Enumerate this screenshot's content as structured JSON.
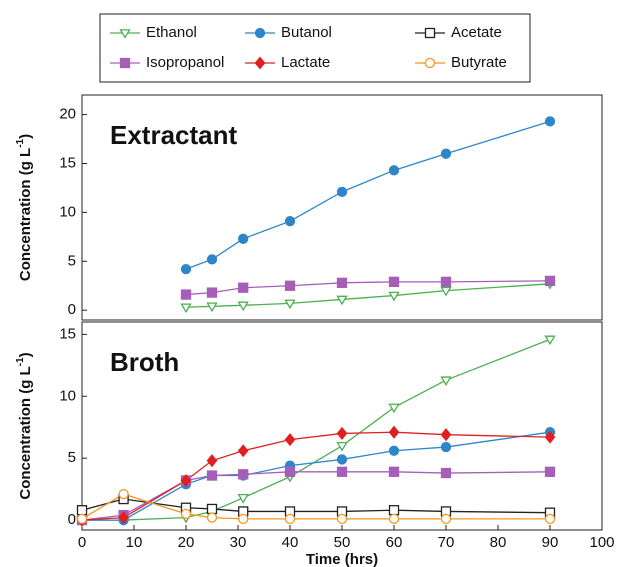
{
  "chart_data": [
    {
      "type": "line",
      "annotation": "Extractant",
      "ylabel": "Concentration (g L",
      "ylabel_sup": "-1",
      "ylabel_end": ")",
      "x": [
        20,
        25,
        31,
        40,
        50,
        60,
        70,
        90
      ],
      "xlim": [
        0,
        100
      ],
      "ylim": [
        -1,
        22
      ],
      "yticks": [
        0,
        5,
        10,
        15,
        20
      ],
      "series": [
        {
          "color": "#4caf50",
          "marker": "triangle-down",
          "filled": false,
          "values": [
            0.3,
            0.4,
            0.5,
            0.7,
            1.1,
            1.5,
            2.0,
            2.7
          ]
        },
        {
          "color": "#2e86c8",
          "marker": "circle",
          "filled": true,
          "values": [
            4.2,
            5.2,
            7.3,
            9.1,
            12.1,
            14.3,
            16.0,
            19.3
          ]
        },
        {
          "color": "#a65fb8",
          "marker": "square",
          "filled": true,
          "values": [
            1.6,
            1.8,
            2.3,
            2.5,
            2.8,
            2.9,
            2.9,
            3.0
          ]
        }
      ]
    },
    {
      "type": "line",
      "annotation": "Broth",
      "ylabel": "Concentration (g L",
      "ylabel_sup": "-1",
      "ylabel_end": ")",
      "xlabel": "Time (hrs)",
      "x": [
        0,
        8,
        20,
        25,
        31,
        40,
        50,
        60,
        70,
        90
      ],
      "xlim": [
        0,
        100
      ],
      "xticks": [
        0,
        10,
        20,
        30,
        40,
        50,
        60,
        70,
        80,
        90,
        100
      ],
      "ylim": [
        -0.8,
        16
      ],
      "yticks": [
        0,
        5,
        10,
        15
      ],
      "series": [
        {
          "name": "Ethanol",
          "color": "#4caf50",
          "marker": "triangle-down",
          "filled": false,
          "values": [
            0,
            0,
            0.2,
            0.7,
            1.8,
            3.5,
            6.0,
            9.1,
            11.3,
            14.6
          ]
        },
        {
          "name": "Butanol",
          "color": "#2e86c8",
          "marker": "circle",
          "filled": true,
          "values": [
            0,
            0,
            2.9,
            3.6,
            3.6,
            4.4,
            4.9,
            5.6,
            5.9,
            7.1
          ]
        },
        {
          "name": "Acetate",
          "color": "#222222",
          "marker": "square",
          "filled": false,
          "values": [
            0.8,
            1.7,
            1.0,
            0.9,
            0.7,
            0.7,
            0.7,
            0.8,
            0.7,
            0.6
          ]
        },
        {
          "name": "Isopropanol",
          "color": "#a65fb8",
          "marker": "square",
          "filled": true,
          "values": [
            0,
            0.4,
            3.2,
            3.6,
            3.7,
            3.9,
            3.9,
            3.9,
            3.8,
            3.9
          ]
        },
        {
          "name": "Lactate",
          "color": "#e02020",
          "marker": "diamond",
          "filled": true,
          "values": [
            0,
            0.2,
            3.2,
            4.8,
            5.6,
            6.5,
            7.0,
            7.1,
            6.9,
            6.7
          ]
        },
        {
          "name": "Butyrate",
          "color": "#f7941d",
          "marker": "circle",
          "filled": false,
          "values": [
            0.1,
            2.1,
            0.5,
            0.2,
            0.1,
            0.1,
            0.1,
            0.1,
            0.1,
            0.1
          ]
        }
      ]
    }
  ]
}
